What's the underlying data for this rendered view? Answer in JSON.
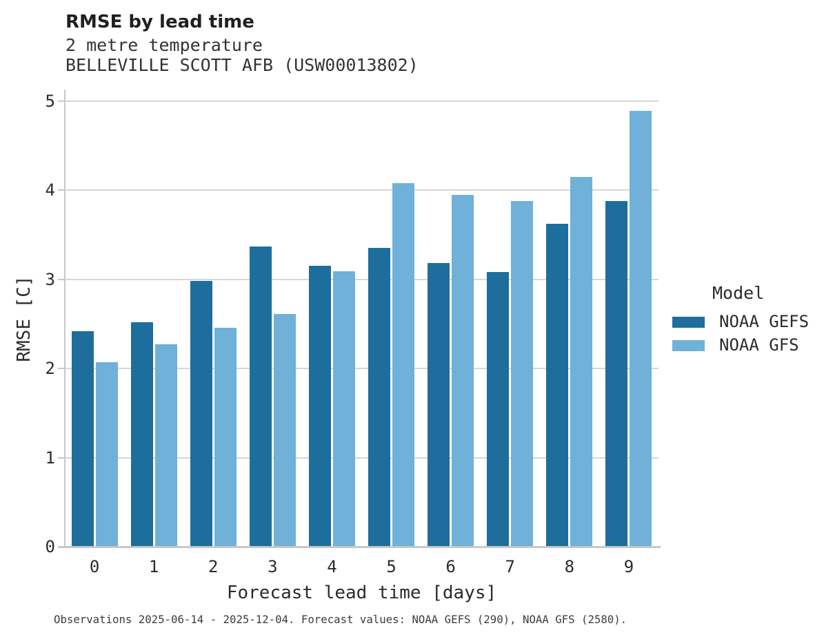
{
  "header": {
    "title": "RMSE by lead time",
    "subtitle_line1": "2 metre temperature",
    "subtitle_line2": "BELLEVILLE SCOTT AFB (USW00013802)"
  },
  "axes": {
    "x_label": "Forecast lead time [days]",
    "y_label": "RMSE [C]",
    "x_ticks": [
      "0",
      "1",
      "2",
      "3",
      "4",
      "5",
      "6",
      "7",
      "8",
      "9"
    ],
    "y_ticks": [
      "0",
      "1",
      "2",
      "3",
      "4",
      "5"
    ]
  },
  "legend": {
    "title": "Model",
    "items": [
      {
        "label": "NOAA GEFS",
        "color": "#1d6e9d"
      },
      {
        "label": "NOAA GFS",
        "color": "#6fb1d8"
      }
    ]
  },
  "footer": {
    "text": "Observations 2025-06-14 - 2025-12-04. Forecast values: NOAA GEFS (290), NOAA GFS (2580)."
  },
  "colors": {
    "gefs_bar": "#1d6e9d",
    "gfs_bar": "#6fb1d8",
    "grid": "#d6d6d6",
    "spine": "#c8c8c8",
    "text": "#2b2b2b",
    "title_text": "#202020",
    "footer_text": "#3c3c3c",
    "background": "#ffffff"
  },
  "chart_data": {
    "type": "bar",
    "title": "RMSE by lead time",
    "subtitle": [
      "2 metre temperature",
      "BELLEVILLE SCOTT AFB (USW00013802)"
    ],
    "categories": [
      0,
      1,
      2,
      3,
      4,
      5,
      6,
      7,
      8,
      9
    ],
    "series": [
      {
        "name": "NOAA GEFS",
        "color": "#1d6e9d",
        "values": [
          2.42,
          2.52,
          2.98,
          3.37,
          3.15,
          3.35,
          3.18,
          3.08,
          3.62,
          3.88
        ]
      },
      {
        "name": "NOAA GFS",
        "color": "#6fb1d8",
        "values": [
          2.07,
          2.27,
          2.46,
          2.61,
          3.09,
          4.08,
          3.95,
          3.88,
          4.15,
          4.89
        ]
      }
    ],
    "xlabel": "Forecast lead time [days]",
    "ylabel": "RMSE [C]",
    "ylim": [
      0,
      5.13
    ],
    "yticks": [
      0,
      1,
      2,
      3,
      4,
      5
    ],
    "grid": "horizontal",
    "legend_title": "Model",
    "legend_position": "right",
    "annotation": "Observations 2025-06-14 - 2025-12-04. Forecast values: NOAA GEFS (290), NOAA GFS (2580)."
  }
}
